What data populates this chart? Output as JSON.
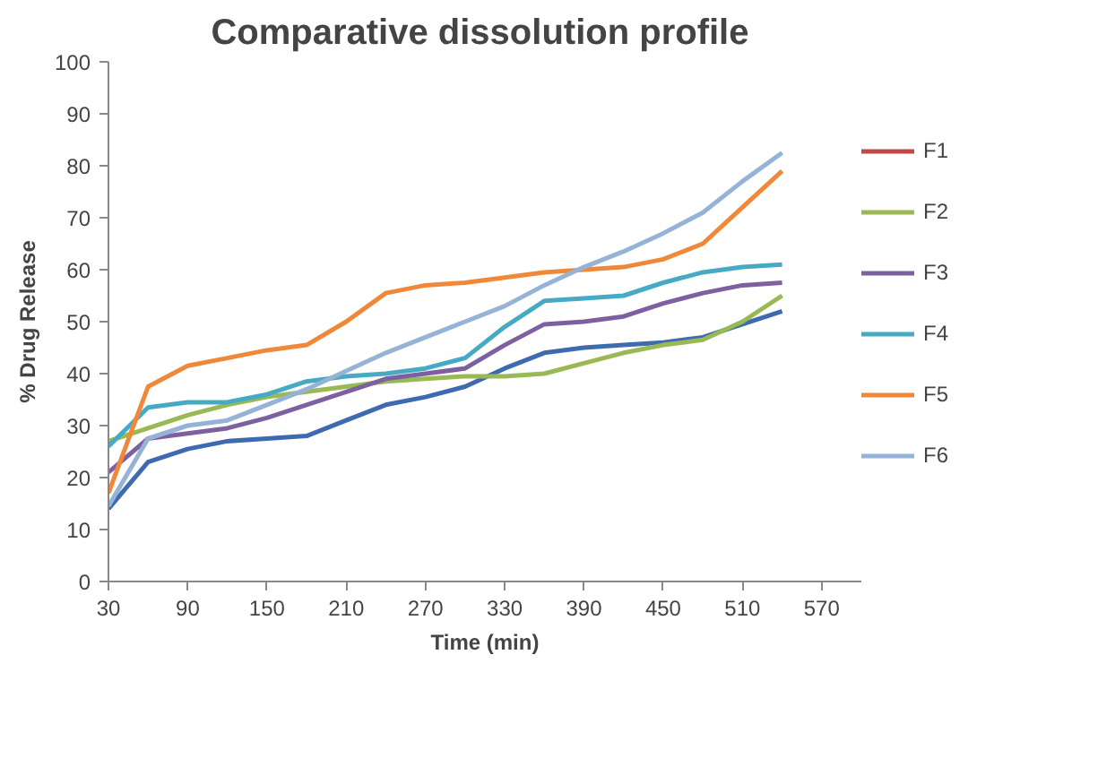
{
  "chart_data": {
    "type": "line",
    "title": "Comparative  dissolution profile",
    "xlabel": "Time (min)",
    "ylabel": "% Drug Release",
    "x": [
      30,
      60,
      90,
      120,
      150,
      180,
      210,
      240,
      270,
      300,
      330,
      360,
      390,
      420,
      450,
      480,
      510,
      540
    ],
    "xlim": [
      30,
      600
    ],
    "xticks": [
      30,
      90,
      150,
      210,
      270,
      330,
      390,
      450,
      510,
      570
    ],
    "ylim": [
      0,
      100
    ],
    "yticks": [
      0,
      10,
      20,
      30,
      40,
      50,
      60,
      70,
      80,
      90,
      100
    ],
    "grid": false,
    "legend": "right",
    "marker": "none",
    "line_style": "solid",
    "series": [
      {
        "color": "#3e6bb0",
        "values": [
          14,
          23,
          25.5,
          27,
          27.5,
          28,
          31,
          34,
          35.5,
          37.5,
          41,
          44,
          45,
          45.5,
          46,
          47,
          49.5,
          52
        ]
      },
      {
        "name": "F1",
        "color": "#be4b48",
        "values": [
          null,
          null,
          null,
          null,
          null,
          null,
          null,
          null,
          null,
          null,
          null,
          null,
          null,
          null,
          null,
          null,
          null,
          null
        ]
      },
      {
        "name": "F2",
        "color": "#98b954",
        "values": [
          27,
          29.5,
          32,
          34,
          35.5,
          36.5,
          37.5,
          38.5,
          39,
          39.5,
          39.5,
          40,
          42,
          44,
          45.5,
          46.5,
          50,
          55
        ]
      },
      {
        "name": "F3",
        "color": "#7d60a0",
        "values": [
          21,
          27.5,
          28.5,
          29.5,
          31.5,
          34,
          36.5,
          39,
          40,
          41,
          45.5,
          49.5,
          50,
          51,
          53.5,
          55.5,
          57,
          57.5
        ]
      },
      {
        "name": "F4",
        "color": "#46aac5",
        "values": [
          26,
          33.5,
          34.5,
          34.5,
          36,
          38.5,
          39.5,
          40,
          41,
          43,
          49,
          54,
          54.5,
          55,
          57.5,
          59.5,
          60.5,
          61
        ]
      },
      {
        "name": "F5",
        "color": "#f0883a",
        "values": [
          17,
          37.5,
          41.5,
          43,
          44.5,
          45.5,
          50,
          55.5,
          57,
          57.5,
          58.5,
          59.5,
          60,
          60.5,
          62,
          65,
          72,
          79
        ]
      },
      {
        "name": "F6",
        "color": "#95b3d7",
        "values": [
          14.5,
          27.5,
          30,
          31,
          34,
          37,
          40.5,
          44,
          47,
          50,
          53,
          57,
          60.5,
          63.5,
          67,
          71,
          77,
          82.5
        ]
      }
    ]
  }
}
